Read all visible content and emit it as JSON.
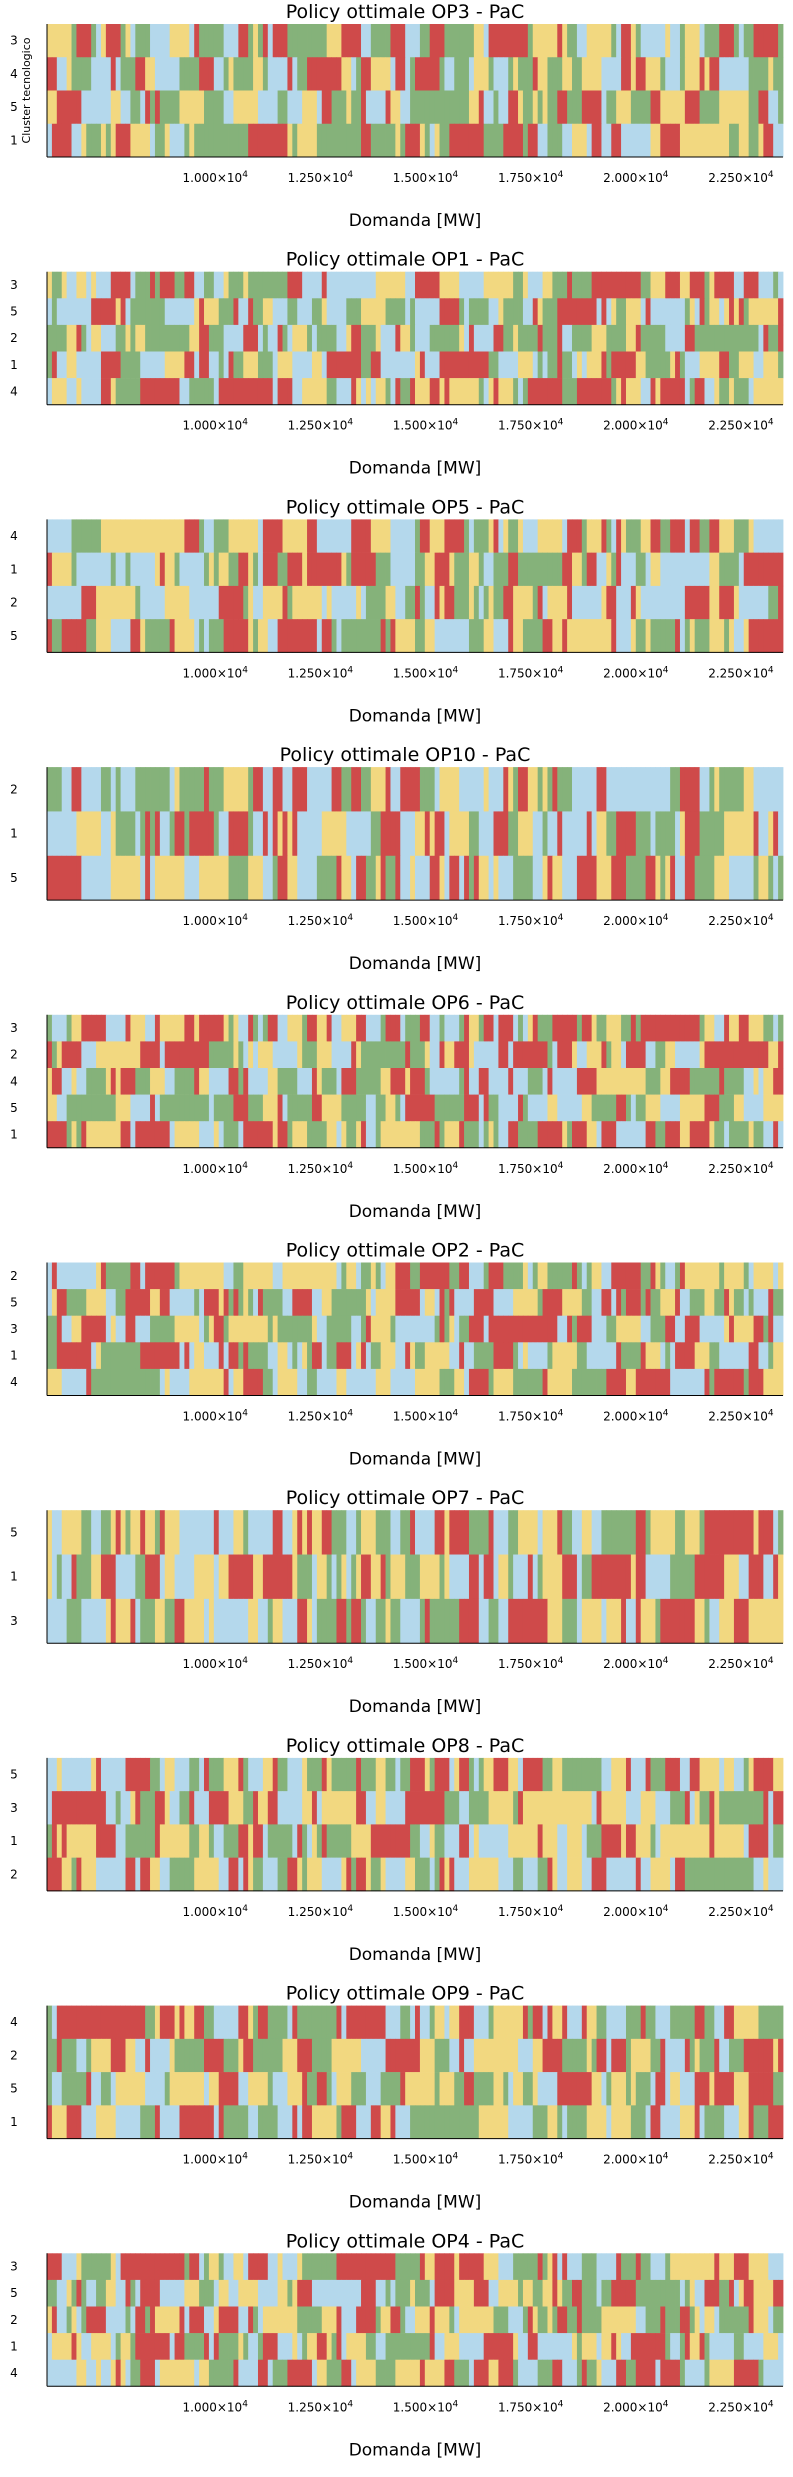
{
  "figure": {
    "colors": {
      "red": "#cf4a4a",
      "yellow": "#f2d880",
      "green": "#85b27a",
      "blue": "#b4d8ec"
    },
    "ylabel": "Cluster tecnologico",
    "xticks": [
      "1.000×10^4",
      "1.250×10^4",
      "1.500×10^4",
      "1.750×10^4",
      "2.000×10^4",
      "2.250×10^4"
    ],
    "xlabel": "Domanda [MW]"
  },
  "chart_data": [
    {
      "type": "heatmap",
      "title": "Policy ottimale OP3 - PaC",
      "xlabel": "Domanda [MW]",
      "ylabel": "Cluster tecnologico",
      "rows": [
        "3",
        "4",
        "5",
        "1"
      ],
      "xlim": [
        6000,
        23500
      ],
      "seed": 3
    },
    {
      "type": "heatmap",
      "title": "Policy ottimale OP1 - PaC",
      "xlabel": "Domanda [MW]",
      "ylabel": "",
      "rows": [
        "3",
        "5",
        "2",
        "1",
        "4"
      ],
      "xlim": [
        6000,
        23500
      ],
      "seed": 1
    },
    {
      "type": "heatmap",
      "title": "Policy ottimale OP5 - PaC",
      "xlabel": "Domanda [MW]",
      "ylabel": "",
      "rows": [
        "4",
        "1",
        "2",
        "5"
      ],
      "xlim": [
        6000,
        23500
      ],
      "seed": 5
    },
    {
      "type": "heatmap",
      "title": "Policy ottimale OP10 - PaC",
      "xlabel": "Domanda [MW]",
      "ylabel": "",
      "rows": [
        "2",
        "1",
        "5"
      ],
      "xlim": [
        6000,
        23500
      ],
      "seed": 10
    },
    {
      "type": "heatmap",
      "title": "Policy ottimale OP6 - PaC",
      "xlabel": "Domanda [MW]",
      "ylabel": "",
      "rows": [
        "3",
        "2",
        "4",
        "5",
        "1"
      ],
      "xlim": [
        6000,
        23500
      ],
      "seed": 6
    },
    {
      "type": "heatmap",
      "title": "Policy ottimale OP2 - PaC",
      "xlabel": "Domanda [MW]",
      "ylabel": "",
      "rows": [
        "2",
        "5",
        "3",
        "1",
        "4"
      ],
      "xlim": [
        6000,
        23500
      ],
      "seed": 2
    },
    {
      "type": "heatmap",
      "title": "Policy ottimale OP7 - PaC",
      "xlabel": "Domanda [MW]",
      "ylabel": "",
      "rows": [
        "5",
        "1",
        "3"
      ],
      "xlim": [
        6000,
        23500
      ],
      "seed": 7
    },
    {
      "type": "heatmap",
      "title": "Policy ottimale OP8 - PaC",
      "xlabel": "Domanda [MW]",
      "ylabel": "",
      "rows": [
        "5",
        "3",
        "1",
        "2"
      ],
      "xlim": [
        6000,
        23500
      ],
      "seed": 8
    },
    {
      "type": "heatmap",
      "title": "Policy ottimale OP9 - PaC",
      "xlabel": "Domanda [MW]",
      "ylabel": "",
      "rows": [
        "4",
        "2",
        "5",
        "1"
      ],
      "xlim": [
        6000,
        23500
      ],
      "seed": 9
    },
    {
      "type": "heatmap",
      "title": "Policy ottimale OP4 - PaC",
      "xlabel": "Domanda [MW]",
      "ylabel": "",
      "rows": [
        "3",
        "5",
        "2",
        "1",
        "4"
      ],
      "xlim": [
        6000,
        23500
      ],
      "seed": 4
    }
  ]
}
